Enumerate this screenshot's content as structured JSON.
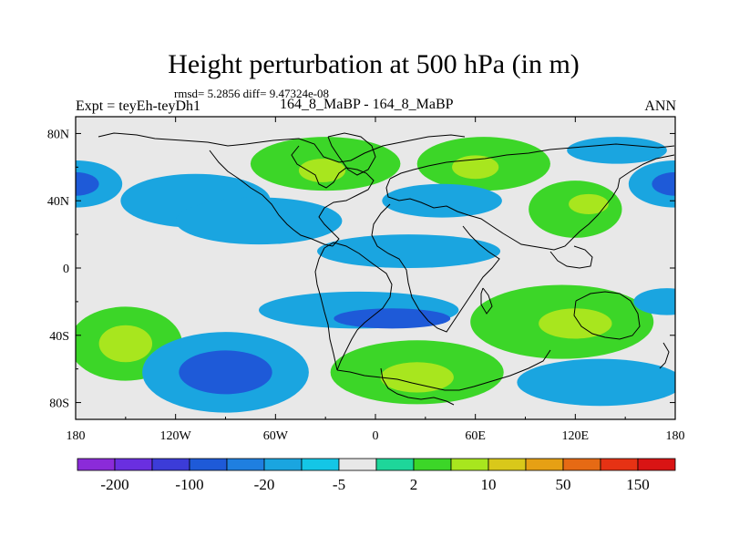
{
  "title": "Height perturbation at 500 hPa (in m)",
  "stats": "rmsd= 5.2856 diff= 9.47324e-08",
  "experiment": "Expt = teyEh-teyDh1",
  "case": "164_8_MaBP - 164_8_MaBP",
  "season": "ANN",
  "chart_data": {
    "type": "heatmap",
    "title": "Height perturbation at 500 hPa (in m)",
    "variable": "500 hPa height perturbation",
    "units": "m",
    "xlim": [
      -180,
      180
    ],
    "ylim": [
      -90,
      90
    ],
    "x_ticks": [
      {
        "value": -180,
        "label": "180"
      },
      {
        "value": -120,
        "label": "120W"
      },
      {
        "value": -60,
        "label": "60W"
      },
      {
        "value": 0,
        "label": "0"
      },
      {
        "value": 60,
        "label": "60E"
      },
      {
        "value": 120,
        "label": "120E"
      },
      {
        "value": 180,
        "label": "180"
      }
    ],
    "y_ticks": [
      {
        "value": 80,
        "label": "80N"
      },
      {
        "value": 40,
        "label": "40N"
      },
      {
        "value": 0,
        "label": "0"
      },
      {
        "value": -40,
        "label": "40S"
      },
      {
        "value": -80,
        "label": "80S"
      }
    ],
    "colorbar": {
      "colors": [
        "#8b2bd9",
        "#6a2fe0",
        "#3c3cd8",
        "#1e5ad8",
        "#1f7fe0",
        "#1aa5e0",
        "#14c6e6",
        "#e8e8e8",
        "#1ed69a",
        "#3cd628",
        "#a8e61e",
        "#d9c81a",
        "#e6a014",
        "#e66a14",
        "#e63214",
        "#d91414"
      ],
      "tick_labels": [
        {
          "label": "-200",
          "boundary": 1
        },
        {
          "label": "-100",
          "boundary": 3
        },
        {
          "label": "-20",
          "boundary": 5
        },
        {
          "label": "-5",
          "boundary": 7
        },
        {
          "label": "2",
          "boundary": 9
        },
        {
          "label": "10",
          "boundary": 11
        },
        {
          "label": "50",
          "boundary": 13
        },
        {
          "label": "150",
          "boundary": 15
        }
      ]
    },
    "features": [
      {
        "lon": -180,
        "lat": 50,
        "rx": 28,
        "ry": 14,
        "level": -1
      },
      {
        "lon": -180,
        "lat": 50,
        "rx": 14,
        "ry": 7,
        "level": -2
      },
      {
        "lon": 180,
        "lat": 50,
        "rx": 28,
        "ry": 14,
        "level": -1
      },
      {
        "lon": 180,
        "lat": 50,
        "rx": 14,
        "ry": 7,
        "level": -2
      },
      {
        "lon": -108,
        "lat": 40,
        "rx": 45,
        "ry": 16,
        "level": -1
      },
      {
        "lon": -30,
        "lat": 62,
        "rx": 45,
        "ry": 16,
        "level": 1
      },
      {
        "lon": -32,
        "lat": 58,
        "rx": 14,
        "ry": 7,
        "level": 2
      },
      {
        "lon": 65,
        "lat": 62,
        "rx": 40,
        "ry": 16,
        "level": 1
      },
      {
        "lon": 60,
        "lat": 60,
        "rx": 14,
        "ry": 7,
        "level": 2
      },
      {
        "lon": 40,
        "lat": 40,
        "rx": 36,
        "ry": 10,
        "level": -1
      },
      {
        "lon": 120,
        "lat": 35,
        "rx": 28,
        "ry": 17,
        "level": 1
      },
      {
        "lon": 128,
        "lat": 38,
        "rx": 12,
        "ry": 6,
        "level": 2
      },
      {
        "lon": 145,
        "lat": 70,
        "rx": 30,
        "ry": 8,
        "level": -1
      },
      {
        "lon": -70,
        "lat": 28,
        "rx": 50,
        "ry": 14,
        "level": -1
      },
      {
        "lon": 20,
        "lat": 10,
        "rx": 55,
        "ry": 10,
        "level": -1
      },
      {
        "lon": -10,
        "lat": -25,
        "rx": 60,
        "ry": 11,
        "level": -1
      },
      {
        "lon": 10,
        "lat": -30,
        "rx": 35,
        "ry": 6,
        "level": -2
      },
      {
        "lon": -150,
        "lat": -45,
        "rx": 34,
        "ry": 22,
        "level": 1
      },
      {
        "lon": -150,
        "lat": -45,
        "rx": 16,
        "ry": 11,
        "level": 2
      },
      {
        "lon": -90,
        "lat": -62,
        "rx": 50,
        "ry": 24,
        "level": -1
      },
      {
        "lon": -90,
        "lat": -62,
        "rx": 28,
        "ry": 13,
        "level": -2
      },
      {
        "lon": 25,
        "lat": -62,
        "rx": 52,
        "ry": 19,
        "level": 1
      },
      {
        "lon": 25,
        "lat": -65,
        "rx": 22,
        "ry": 9,
        "level": 2
      },
      {
        "lon": 112,
        "lat": -32,
        "rx": 55,
        "ry": 22,
        "level": 1
      },
      {
        "lon": 120,
        "lat": -33,
        "rx": 22,
        "ry": 9,
        "level": 2
      },
      {
        "lon": 135,
        "lat": -68,
        "rx": 50,
        "ry": 14,
        "level": -1
      },
      {
        "lon": 175,
        "lat": -20,
        "rx": 20,
        "ry": 8,
        "level": -1
      }
    ]
  }
}
